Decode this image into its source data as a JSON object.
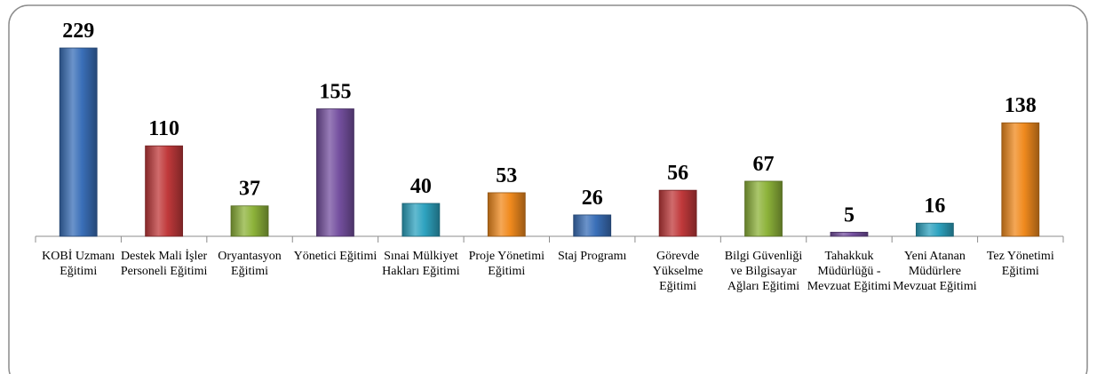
{
  "chart_data": {
    "type": "bar",
    "categories": [
      "KOBİ Uzmanı Eğitimi",
      "Destek Mali İşler Personeli Eğitimi",
      "Oryantasyon Eğitimi",
      "Yönetici Eğitimi",
      "Sınai Mülkiyet Hakları Eğitimi",
      "Proje Yönetimi Eğitimi",
      "Staj Programı",
      "Görevde Yükselme Eğitimi",
      "Bilgi Güvenliği ve Bilgisayar Ağları Eğitimi",
      "Tahakkuk Müdürlüğü - Mevzuat Eğitimi",
      "Yeni Atanan Müdürlere Mevzuat Eğitimi",
      "Tez Yönetimi Eğitimi"
    ],
    "values": [
      229,
      110,
      37,
      155,
      40,
      53,
      26,
      56,
      67,
      5,
      16,
      138
    ],
    "colors": [
      "#3a6fb8",
      "#c0393b",
      "#8db33a",
      "#7550a0",
      "#2ea3c0",
      "#f08a1e",
      "#3a6fb8",
      "#c0393b",
      "#8db33a",
      "#7550a0",
      "#2ea3c0",
      "#f08a1e"
    ]
  }
}
